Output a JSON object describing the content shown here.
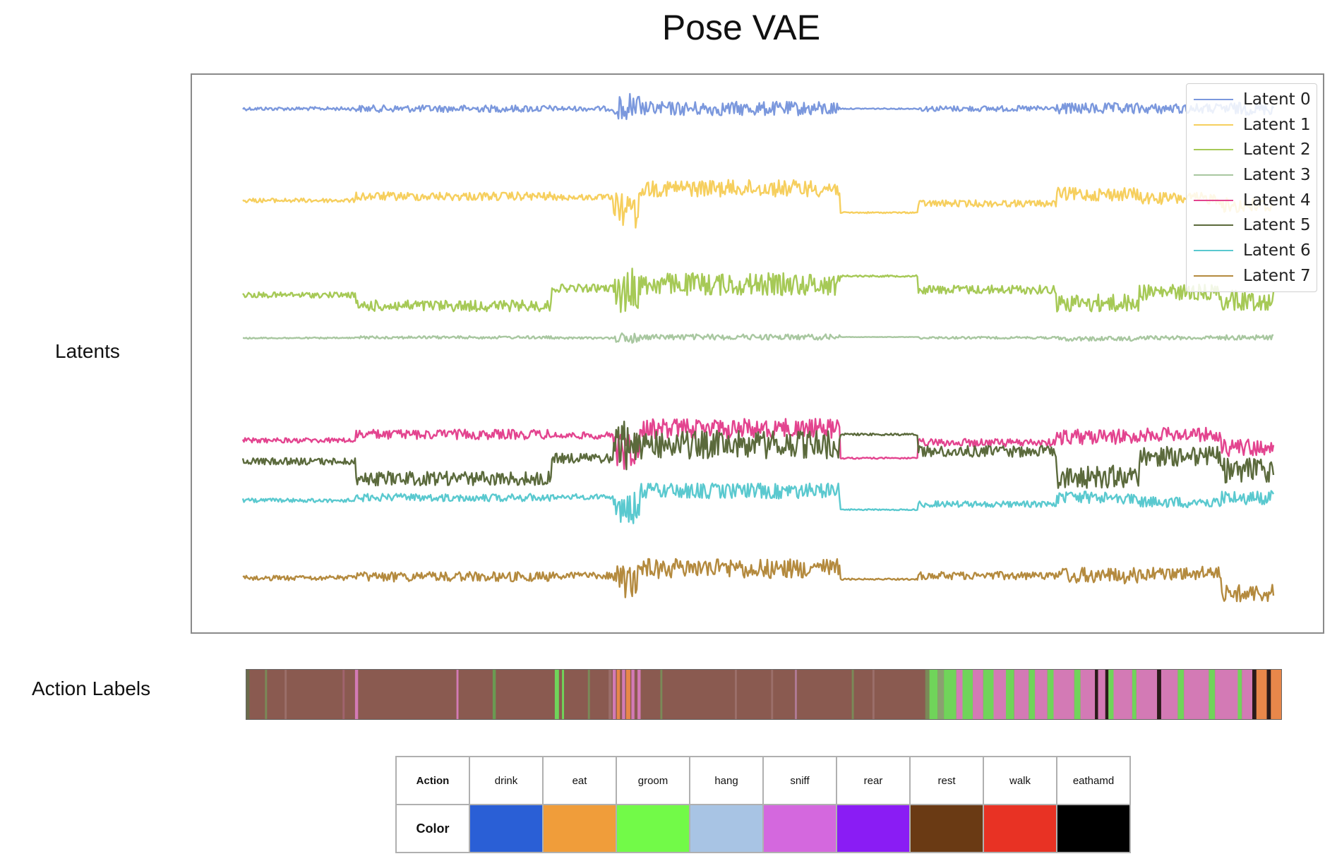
{
  "title": "Pose VAE",
  "latents_label": "Latents",
  "action_labels_label": "Action Labels",
  "chart_data": [
    {
      "type": "line",
      "title": "",
      "xlabel": "",
      "ylabel": "",
      "x_range": [
        0,
        1
      ],
      "legend_position": "top-right",
      "series": [
        {
          "name": "Latent 0",
          "color": "#7b98dd"
        },
        {
          "name": "Latent 1",
          "color": "#f6cf5e"
        },
        {
          "name": "Latent 2",
          "color": "#a6c956"
        },
        {
          "name": "Latent 3",
          "color": "#a8c7a0"
        },
        {
          "name": "Latent 4",
          "color": "#e3448f"
        },
        {
          "name": "Latent 5",
          "color": "#5b6a3c"
        },
        {
          "name": "Latent 6",
          "color": "#5ac9cf"
        },
        {
          "name": "Latent 7",
          "color": "#b48a3e"
        }
      ]
    },
    {
      "type": "heatmap",
      "title": "",
      "base_color": "#8a5a50",
      "segments": [
        {
          "start": 0.0,
          "end": 0.003,
          "color": "#6b6b4b"
        },
        {
          "start": 0.018,
          "end": 0.02,
          "color": "#7a8a58"
        },
        {
          "start": 0.037,
          "end": 0.039,
          "color": "#9b6f6a"
        },
        {
          "start": 0.093,
          "end": 0.095,
          "color": "#a0646e"
        },
        {
          "start": 0.105,
          "end": 0.108,
          "color": "#d37ab5"
        },
        {
          "start": 0.203,
          "end": 0.205,
          "color": "#d37ab5"
        },
        {
          "start": 0.238,
          "end": 0.241,
          "color": "#6a9a52"
        },
        {
          "start": 0.298,
          "end": 0.302,
          "color": "#70d45a"
        },
        {
          "start": 0.305,
          "end": 0.307,
          "color": "#70d45a"
        },
        {
          "start": 0.33,
          "end": 0.332,
          "color": "#7a8a58"
        },
        {
          "start": 0.35,
          "end": 0.353,
          "color": "#9b6f6a"
        },
        {
          "start": 0.354,
          "end": 0.357,
          "color": "#d37ab5"
        },
        {
          "start": 0.358,
          "end": 0.361,
          "color": "#e8874a"
        },
        {
          "start": 0.363,
          "end": 0.366,
          "color": "#d37ab5"
        },
        {
          "start": 0.367,
          "end": 0.371,
          "color": "#e8874a"
        },
        {
          "start": 0.372,
          "end": 0.375,
          "color": "#d37ab5"
        },
        {
          "start": 0.378,
          "end": 0.381,
          "color": "#d37ab5"
        },
        {
          "start": 0.4,
          "end": 0.402,
          "color": "#7a8a58"
        },
        {
          "start": 0.472,
          "end": 0.474,
          "color": "#9b6f6a"
        },
        {
          "start": 0.507,
          "end": 0.509,
          "color": "#9b6f6a"
        },
        {
          "start": 0.53,
          "end": 0.532,
          "color": "#b07a95"
        },
        {
          "start": 0.585,
          "end": 0.587,
          "color": "#7a8a58"
        },
        {
          "start": 0.605,
          "end": 0.607,
          "color": "#9b6f6a"
        },
        {
          "start": 0.656,
          "end": 0.66,
          "color": "#7a8a58"
        },
        {
          "start": 0.66,
          "end": 0.668,
          "color": "#70d45a"
        },
        {
          "start": 0.668,
          "end": 0.674,
          "color": "#8aa070"
        },
        {
          "start": 0.674,
          "end": 0.686,
          "color": "#70d45a"
        },
        {
          "start": 0.686,
          "end": 0.692,
          "color": "#d37ab5"
        },
        {
          "start": 0.692,
          "end": 0.702,
          "color": "#70d45a"
        },
        {
          "start": 0.702,
          "end": 0.712,
          "color": "#d37ab5"
        },
        {
          "start": 0.712,
          "end": 0.722,
          "color": "#70d45a"
        },
        {
          "start": 0.722,
          "end": 0.734,
          "color": "#d37ab5"
        },
        {
          "start": 0.734,
          "end": 0.742,
          "color": "#70d45a"
        },
        {
          "start": 0.742,
          "end": 0.756,
          "color": "#d37ab5"
        },
        {
          "start": 0.756,
          "end": 0.762,
          "color": "#70d45a"
        },
        {
          "start": 0.762,
          "end": 0.774,
          "color": "#d37ab5"
        },
        {
          "start": 0.774,
          "end": 0.78,
          "color": "#70d45a"
        },
        {
          "start": 0.78,
          "end": 0.8,
          "color": "#d37ab5"
        },
        {
          "start": 0.8,
          "end": 0.806,
          "color": "#70d45a"
        },
        {
          "start": 0.806,
          "end": 0.82,
          "color": "#d37ab5"
        },
        {
          "start": 0.82,
          "end": 0.823,
          "color": "#2a1a1a"
        },
        {
          "start": 0.823,
          "end": 0.83,
          "color": "#d37ab5"
        },
        {
          "start": 0.83,
          "end": 0.833,
          "color": "#2a1a1a"
        },
        {
          "start": 0.833,
          "end": 0.838,
          "color": "#70d45a"
        },
        {
          "start": 0.838,
          "end": 0.856,
          "color": "#d37ab5"
        },
        {
          "start": 0.856,
          "end": 0.86,
          "color": "#70d45a"
        },
        {
          "start": 0.86,
          "end": 0.88,
          "color": "#d37ab5"
        },
        {
          "start": 0.88,
          "end": 0.884,
          "color": "#2a1a1a"
        },
        {
          "start": 0.884,
          "end": 0.9,
          "color": "#d37ab5"
        },
        {
          "start": 0.9,
          "end": 0.906,
          "color": "#70d45a"
        },
        {
          "start": 0.906,
          "end": 0.93,
          "color": "#d37ab5"
        },
        {
          "start": 0.93,
          "end": 0.936,
          "color": "#70d45a"
        },
        {
          "start": 0.936,
          "end": 0.958,
          "color": "#d37ab5"
        },
        {
          "start": 0.958,
          "end": 0.962,
          "color": "#70d45a"
        },
        {
          "start": 0.962,
          "end": 0.972,
          "color": "#d37ab5"
        },
        {
          "start": 0.972,
          "end": 0.976,
          "color": "#2a1a1a"
        },
        {
          "start": 0.976,
          "end": 0.986,
          "color": "#e8874a"
        },
        {
          "start": 0.986,
          "end": 0.99,
          "color": "#2a1a1a"
        },
        {
          "start": 0.99,
          "end": 1.0,
          "color": "#e8874a"
        }
      ]
    }
  ],
  "legend_table": {
    "action_header": "Action",
    "color_header": "Color",
    "actions": [
      {
        "label": "drink",
        "color": "#2a5fd6"
      },
      {
        "label": "eat",
        "color": "#f09d3a"
      },
      {
        "label": "groom",
        "color": "#72fa48"
      },
      {
        "label": "hang",
        "color": "#a8c4e4"
      },
      {
        "label": "sniff",
        "color": "#d468de"
      },
      {
        "label": "rear",
        "color": "#8a1cf4"
      },
      {
        "label": "rest",
        "color": "#6a3a14"
      },
      {
        "label": "walk",
        "color": "#e83224"
      },
      {
        "label": "eathamd",
        "color": "#000000"
      }
    ]
  }
}
